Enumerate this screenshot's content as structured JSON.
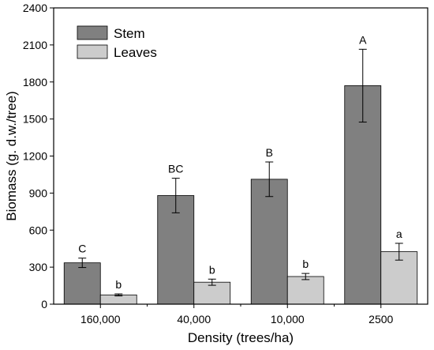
{
  "chart_data": {
    "type": "bar",
    "categories": [
      "160,000",
      "40,000",
      "10,000",
      "2500"
    ],
    "series": [
      {
        "name": "Stem",
        "color": "#808080",
        "values": [
          335,
          880,
          1012,
          1770
        ],
        "errors": [
          38,
          140,
          140,
          295
        ],
        "letters": [
          "C",
          "BC",
          "B",
          "A"
        ]
      },
      {
        "name": "Leaves",
        "color": "#cccccc",
        "values": [
          75,
          178,
          224,
          425
        ],
        "errors": [
          8,
          25,
          25,
          68
        ],
        "letters": [
          "b",
          "b",
          "b",
          "a"
        ]
      }
    ],
    "xlabel": "Density (trees/ha)",
    "ylabel": "Biomass (g. d.w./tree)",
    "ylim": [
      0,
      2400
    ],
    "yticks": [
      0,
      300,
      600,
      900,
      1200,
      1500,
      1800,
      2100,
      2400
    ],
    "ytick_labels": [
      "0",
      "300",
      "600",
      "900",
      "1200",
      "1500",
      "1800",
      "2100",
      "2400"
    ],
    "grid": false,
    "legend_position": "top-left"
  }
}
